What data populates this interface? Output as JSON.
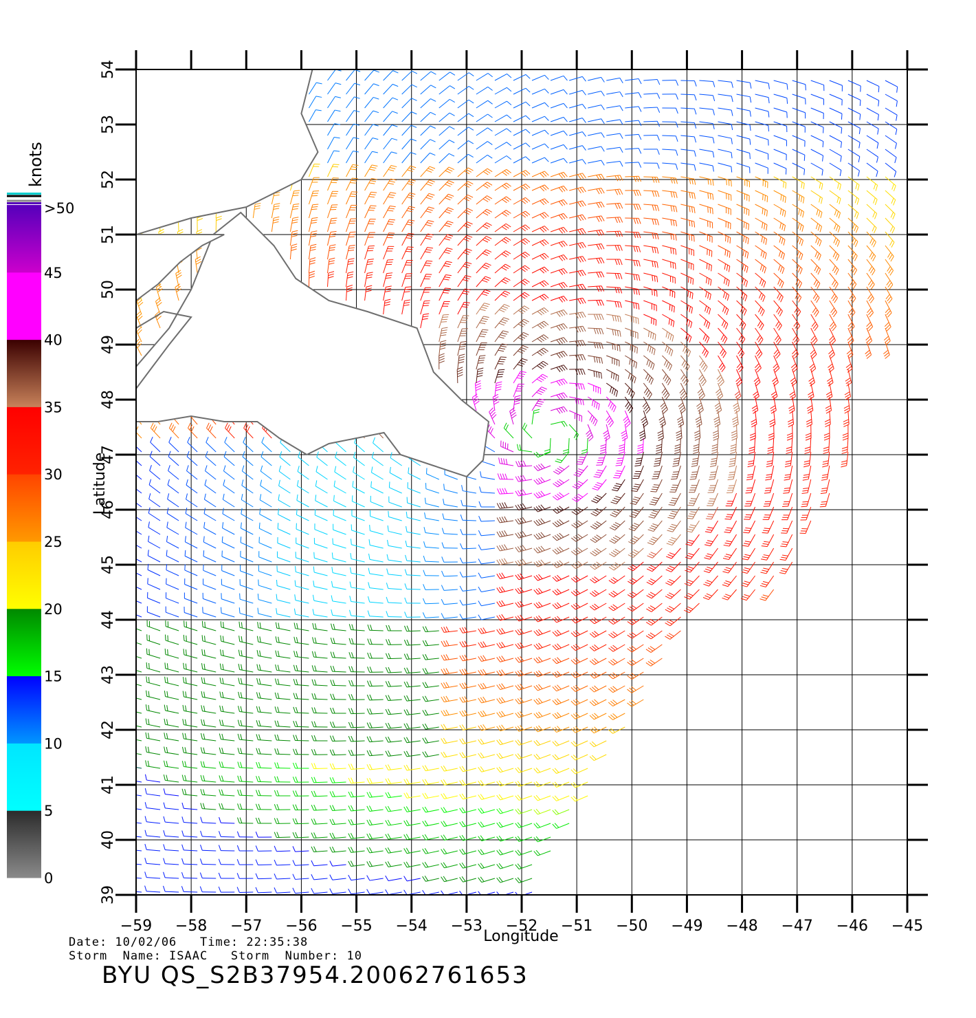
{
  "map": {
    "lon_ticks": [
      -59,
      -58,
      -57,
      -56,
      -55,
      -54,
      -53,
      -52,
      -51,
      -50,
      -49,
      -48,
      -47,
      -46,
      -45
    ],
    "lat_ticks": [
      39,
      40,
      41,
      42,
      43,
      44,
      45,
      46,
      47,
      48,
      49,
      50,
      51,
      52,
      53,
      54
    ],
    "lon_range": [
      -59,
      -45
    ],
    "lat_range": [
      39,
      54
    ],
    "xlabel": "Longitude",
    "ylabel": "Latitude",
    "grid": true,
    "coastline_color": "#6e6e6e",
    "storm_center": {
      "lon": -51.5,
      "lat": 47.3
    }
  },
  "colorbar": {
    "unit": "knots",
    "tick_labels": [
      "0",
      "5",
      "10",
      "15",
      "20",
      "25",
      "30",
      "35",
      "40",
      "45",
      ">50"
    ],
    "segments": [
      {
        "from": 0,
        "to": 5,
        "top": "#2b2b2b",
        "bottom": "#8a8a8a"
      },
      {
        "from": 5,
        "to": 10,
        "top": "#00e6ff",
        "bottom": "#00ffff"
      },
      {
        "from": 10,
        "to": 15,
        "top": "#0000ff",
        "bottom": "#0096ff"
      },
      {
        "from": 15,
        "to": 20,
        "top": "#008800",
        "bottom": "#00ff00"
      },
      {
        "from": 20,
        "to": 25,
        "top": "#ffcc00",
        "bottom": "#ffff00"
      },
      {
        "from": 25,
        "to": 30,
        "top": "#ff4400",
        "bottom": "#ff9900"
      },
      {
        "from": 30,
        "to": 35,
        "top": "#ff0000",
        "bottom": "#ff2200"
      },
      {
        "from": 35,
        "to": 40,
        "top": "#3a0000",
        "bottom": "#c8825a"
      },
      {
        "from": 40,
        "to": 45,
        "top": "#ff00ff",
        "bottom": "#ff00ff"
      },
      {
        "from": 45,
        "to": 50,
        "top": "#5500bb",
        "bottom": "#cc00cc"
      }
    ]
  },
  "footer": {
    "line1": "Date: 10/02/06   Time: 22:35:38",
    "line2": "Storm  Name: ISAAC   Storm  Number: 10",
    "product": "BYU  QS_S2B37954.20062761653"
  }
}
